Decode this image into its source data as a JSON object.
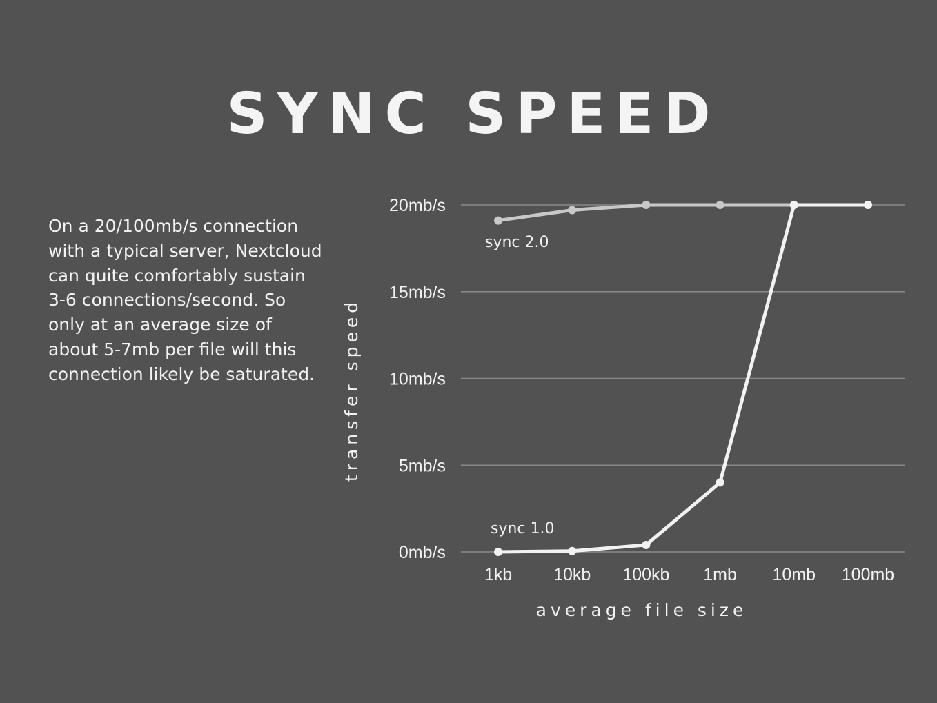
{
  "title": "SYNC SPEED",
  "description": "On a 20/100mb/s connection with a typical server, Nextcloud can quite comfortably sustain 3-6 connections/second. So only at an average size of about 5-7mb per file will this connection likely be saturated.",
  "colors": {
    "background": "#525252",
    "grid": "#8a8a8a",
    "sync1": "#f2f2f2",
    "sync2": "#c8c8c8"
  },
  "chart_data": {
    "type": "line",
    "xlabel": "average file size",
    "ylabel": "transfer speed",
    "categories": [
      "1kb",
      "10kb",
      "100kb",
      "1mb",
      "10mb",
      "100mb"
    ],
    "yticks": [
      0,
      5,
      10,
      15,
      20
    ],
    "ytick_labels": [
      "0mb/s",
      "5mb/s",
      "10mb/s",
      "15mb/s",
      "20mb/s"
    ],
    "ylim": [
      0,
      20
    ],
    "grid": true,
    "series": [
      {
        "name": "sync 2.0",
        "values": [
          19.1,
          19.7,
          20,
          20,
          20,
          20
        ]
      },
      {
        "name": "sync 1.0",
        "values": [
          0,
          0.05,
          0.4,
          4,
          20,
          20
        ]
      }
    ]
  }
}
